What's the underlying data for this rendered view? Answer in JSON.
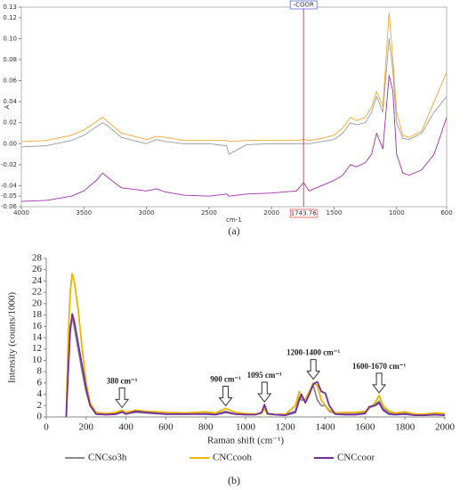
{
  "chart_data": [
    {
      "type": "line",
      "caption": "(a)",
      "xlabel": "cm-1",
      "ylabel": "A",
      "frame": true,
      "grid": false,
      "xlim": [
        4000,
        600
      ],
      "xticks": [
        4000,
        3500,
        3000,
        2500,
        2000,
        1500,
        1000,
        600
      ],
      "ylim": [
        -0.06,
        0.13
      ],
      "yticks": [
        -0.06,
        -0.05,
        -0.04,
        -0.02,
        {
          "value": 0,
          "label": "0.00"
        },
        0.02,
        0.04,
        0.06,
        0.08,
        {
          "value": 0.1,
          "label": "0.10"
        },
        0.12,
        0.13
      ],
      "vline": {
        "x": 1743.76,
        "label": "-COOR",
        "color": "#e8413c"
      },
      "x": [
        4000,
        3800,
        3600,
        3500,
        3400,
        3350,
        3300,
        3200,
        3000,
        2920,
        2850,
        2700,
        2500,
        2360,
        2340,
        2200,
        2000,
        1800,
        1743.76,
        1700,
        1600,
        1500,
        1430,
        1370,
        1320,
        1250,
        1200,
        1160,
        1110,
        1060,
        1030,
        1000,
        950,
        900,
        800,
        700,
        600
      ],
      "series": [
        {
          "color": "#9a9a9a",
          "values": [
            -0.003,
            -0.002,
            0.003,
            0.008,
            0.016,
            0.02,
            0.016,
            0.006,
            0,
            0.004,
            0.002,
            0,
            0,
            -0.002,
            -0.01,
            -0.001,
            0,
            0,
            0,
            0,
            0.002,
            0.004,
            0.01,
            0.02,
            0.018,
            0.02,
            0.03,
            0.045,
            0.03,
            0.1,
            0.07,
            0.02,
            0.005,
            0.004,
            0.01,
            0.03,
            0.045
          ]
        },
        {
          "color": "#f0a830",
          "values": [
            0.002,
            0.003,
            0.008,
            0.013,
            0.021,
            0.025,
            0.02,
            0.01,
            0.004,
            0.007,
            0.006,
            0.003,
            0.003,
            0.003,
            0.002,
            0.003,
            0.003,
            0.003,
            0.004,
            0.003,
            0.005,
            0.008,
            0.015,
            0.025,
            0.022,
            0.025,
            0.035,
            0.05,
            0.035,
            0.125,
            0.08,
            0.03,
            0.008,
            0.006,
            0.012,
            0.04,
            0.068
          ]
        },
        {
          "color": "#a030a8",
          "values": [
            -0.055,
            -0.054,
            -0.05,
            -0.045,
            -0.035,
            -0.028,
            -0.033,
            -0.042,
            -0.045,
            -0.043,
            -0.046,
            -0.049,
            -0.05,
            -0.048,
            -0.05,
            -0.048,
            -0.047,
            -0.045,
            -0.037,
            -0.045,
            -0.04,
            -0.035,
            -0.03,
            -0.02,
            -0.022,
            -0.018,
            -0.01,
            0.01,
            -0.005,
            0.065,
            0.05,
            -0.01,
            -0.028,
            -0.03,
            -0.025,
            -0.01,
            0.025
          ]
        }
      ]
    },
    {
      "type": "line",
      "caption": "(b)",
      "xlabel": "Raman shift (cm⁻¹)",
      "ylabel": "Intensity (counts/1000)",
      "frame": false,
      "grid": false,
      "legend": "bottom",
      "xlim": [
        0,
        2000
      ],
      "xticks": [
        0,
        200,
        400,
        600,
        800,
        1000,
        1200,
        1400,
        1600,
        1800,
        2000
      ],
      "ylim": [
        0,
        28
      ],
      "yticks": [
        0,
        2,
        4,
        6,
        8,
        10,
        12,
        14,
        16,
        18,
        20,
        22,
        24,
        26,
        28
      ],
      "annotations": [
        {
          "text": "380 cm⁻¹",
          "x": 380
        },
        {
          "text": "900 cm⁻¹",
          "x": 900
        },
        {
          "text": "1095 cm⁻¹",
          "x": 1095
        },
        {
          "text": "1200-1400 cm⁻¹",
          "x": 1340
        },
        {
          "text": "1600-1670 cm⁻¹",
          "x": 1670
        }
      ],
      "x": [
        100,
        110,
        120,
        130,
        140,
        160,
        180,
        200,
        220,
        250,
        300,
        350,
        380,
        400,
        450,
        500,
        600,
        700,
        800,
        850,
        900,
        950,
        1000,
        1050,
        1080,
        1095,
        1110,
        1150,
        1200,
        1250,
        1270,
        1280,
        1300,
        1320,
        1340,
        1360,
        1380,
        1400,
        1420,
        1450,
        1500,
        1550,
        1600,
        1620,
        1650,
        1670,
        1690,
        1720,
        1750,
        1800,
        1850,
        1900,
        1950,
        2000
      ],
      "series": [
        {
          "name": "CNCso3h",
          "color": "#8c8c8c",
          "values": [
            0,
            10,
            16,
            17.5,
            16,
            12,
            8,
            4.5,
            2,
            0.6,
            0.5,
            0.5,
            0.8,
            0.6,
            0.8,
            0.7,
            0.5,
            0.5,
            0.6,
            0.5,
            1.0,
            0.5,
            0.5,
            0.5,
            0.6,
            1.8,
            0.6,
            0.4,
            0.5,
            1,
            3.5,
            3,
            3,
            4.5,
            5.5,
            3,
            2,
            2,
            1,
            0.6,
            0.5,
            0.5,
            0.8,
            1.5,
            2.2,
            2.8,
            1.5,
            0.8,
            0.6,
            0.7,
            0.4,
            0.4,
            0.6,
            0.5
          ]
        },
        {
          "name": "CNCcooh",
          "color": "#f0b400",
          "values": [
            0,
            14,
            22,
            25.3,
            24,
            19,
            12,
            6,
            2.5,
            0.8,
            0.6,
            0.8,
            1.2,
            0.8,
            1.2,
            1.0,
            0.8,
            0.7,
            0.9,
            0.7,
            1.5,
            0.8,
            0.6,
            0.5,
            0.6,
            1.5,
            0.5,
            0.4,
            0.5,
            2,
            4.5,
            3.5,
            3,
            4.5,
            6,
            5.5,
            3,
            2,
            1.2,
            0.7,
            0.8,
            0.8,
            1.0,
            1.5,
            2.5,
            3.8,
            2,
            1,
            0.7,
            0.9,
            0.5,
            0.5,
            0.7,
            0.6
          ]
        },
        {
          "name": "CNCcoor",
          "color": "#7030a0",
          "values": [
            0,
            8,
            15,
            18.2,
            17,
            13,
            9,
            5,
            2,
            0.5,
            0.4,
            0.5,
            0.9,
            0.5,
            1.0,
            0.8,
            0.5,
            0.5,
            0.5,
            0.4,
            0.8,
            0.5,
            0.4,
            0.4,
            0.8,
            2.2,
            0.6,
            0.4,
            0.3,
            0.8,
            3,
            4,
            2.5,
            4,
            5.8,
            6.2,
            4.5,
            4.2,
            2,
            0.5,
            0.4,
            0.4,
            0.6,
            1.8,
            2.0,
            2.5,
            1.2,
            0.5,
            0.4,
            0.5,
            0.3,
            0.3,
            0.4,
            0.3
          ]
        }
      ]
    }
  ]
}
